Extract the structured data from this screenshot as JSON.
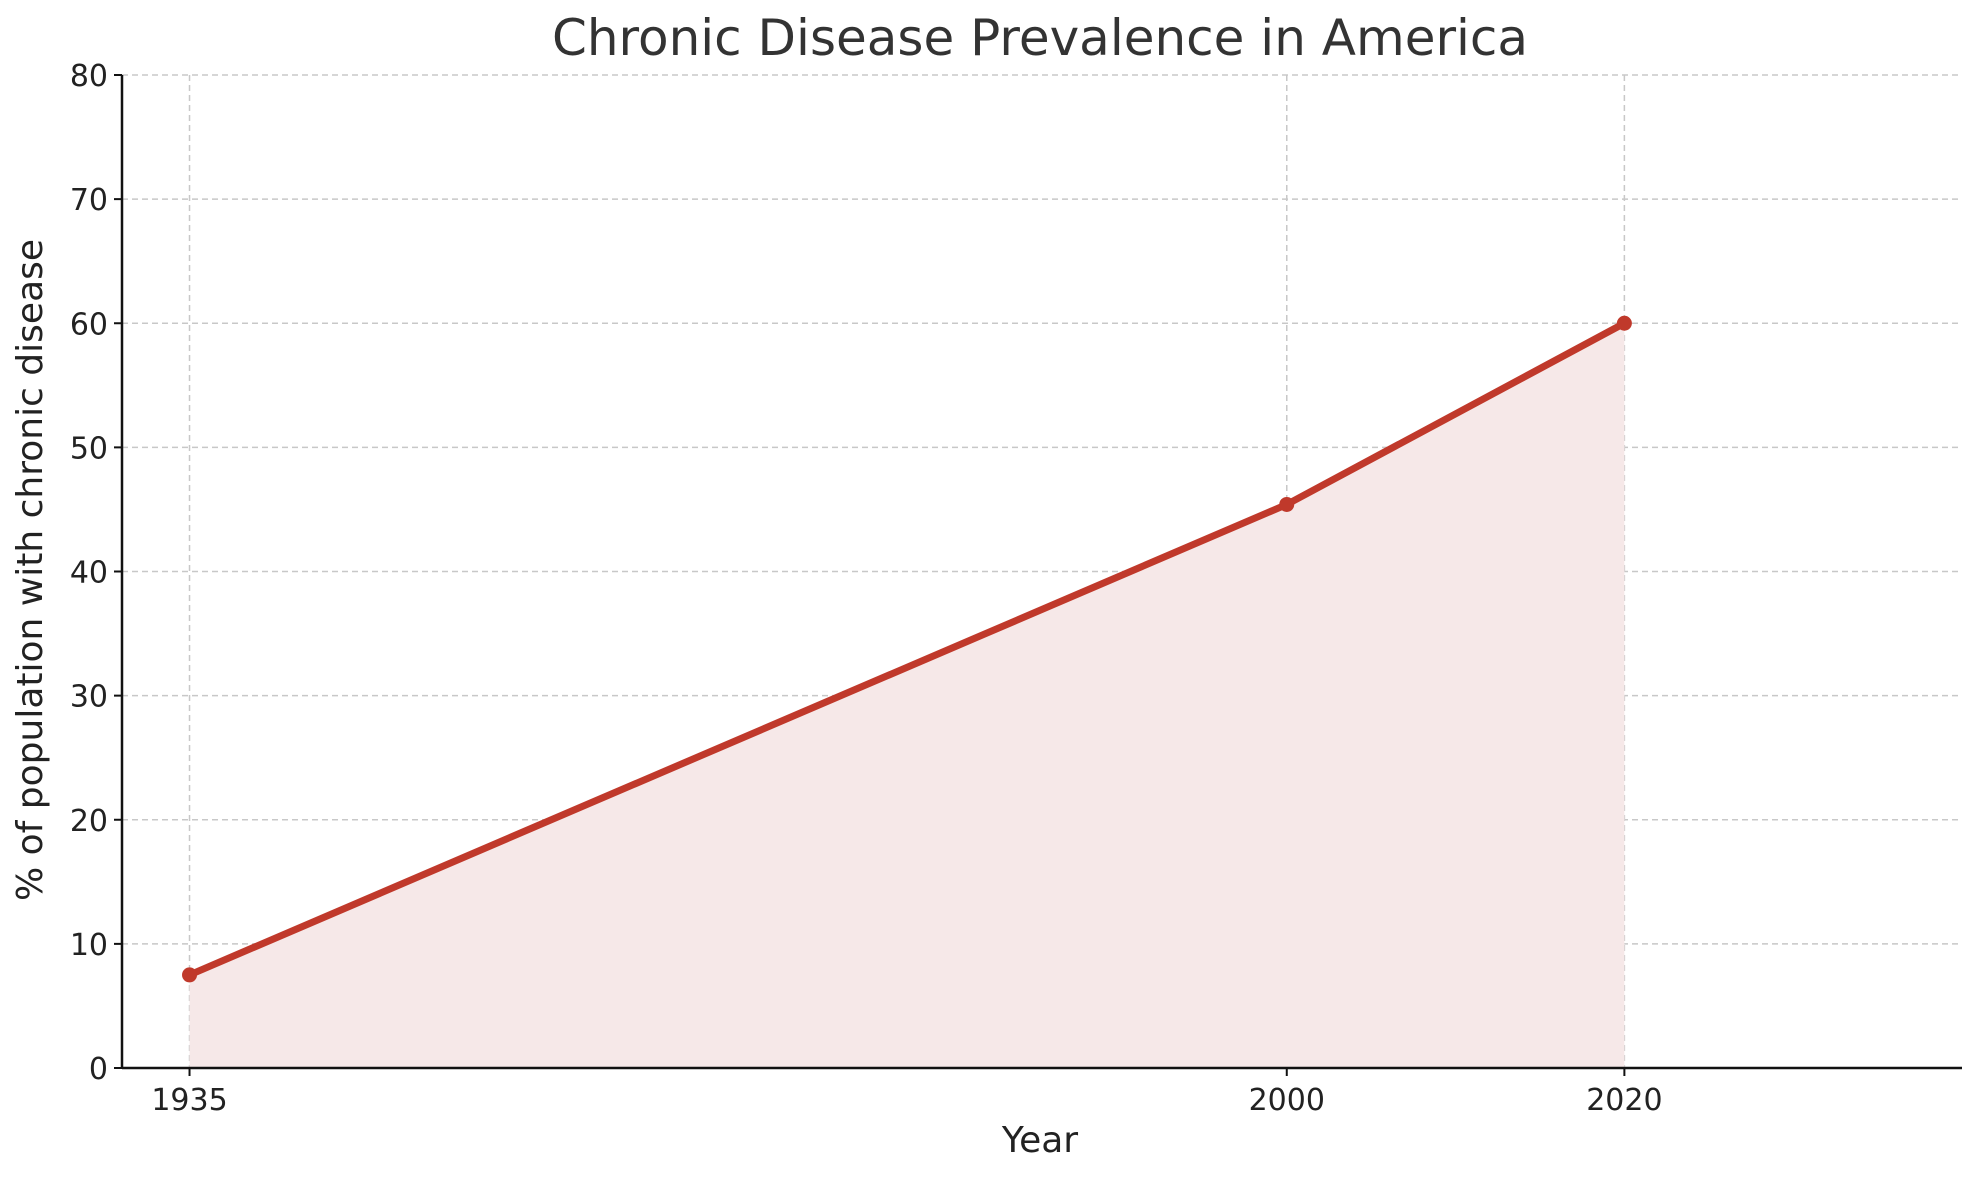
{
  "chart_data": {
    "type": "area",
    "title": "Chronic Disease Prevalence in America",
    "xlabel": "Year",
    "ylabel": "% of population with chronic disease",
    "x": [
      1935,
      2000,
      2020
    ],
    "series": [
      {
        "values": [
          7.5,
          45.4,
          60
        ]
      }
    ],
    "x_ticks": [
      "1935",
      "2000",
      "2020"
    ],
    "y_ticks": [
      "0",
      "10",
      "20",
      "30",
      "40",
      "50",
      "60",
      "70",
      "80"
    ],
    "xlim": [
      1931,
      2040
    ],
    "ylim": [
      0,
      80
    ],
    "grid": true,
    "colors": {
      "line": "#c0392b",
      "fill": "#f6e8e8"
    }
  }
}
